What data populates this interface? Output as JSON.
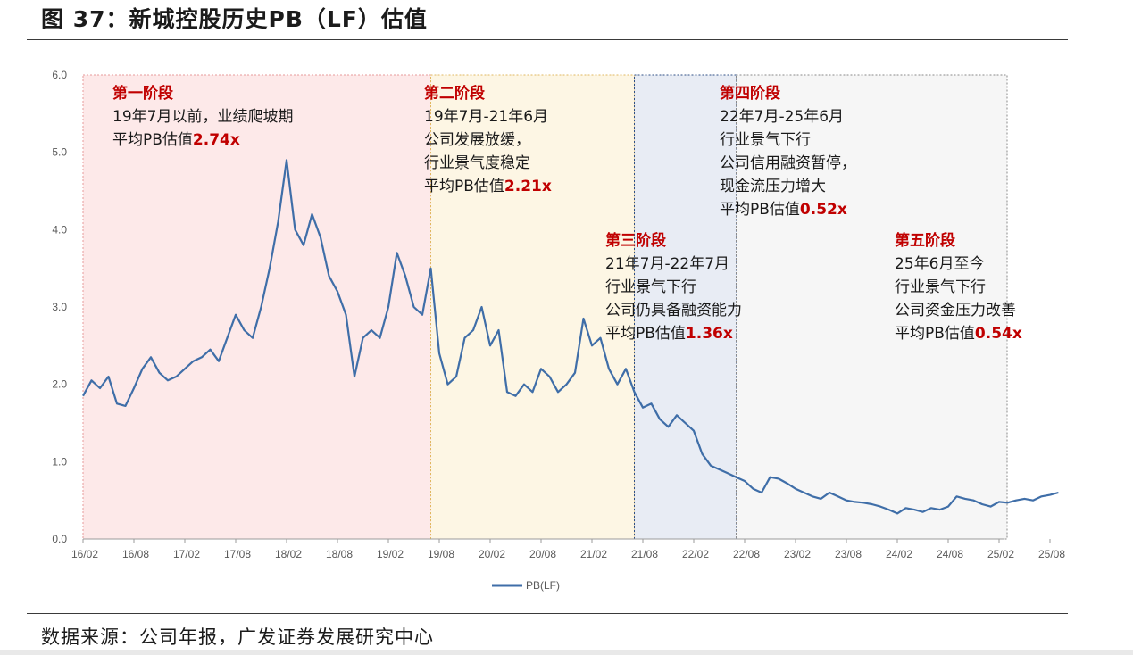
{
  "header": {
    "title": "图 37：新城控股历史PB（LF）估值"
  },
  "footer": {
    "source": "数据来源：公司年报，广发证券发展研究中心"
  },
  "colors": {
    "line": "#3f6ea8",
    "stage_fill": [
      "#fde9e9",
      "#fdf6e4",
      "#e8ecf4",
      "#f6f6f6",
      "#fde9e9"
    ],
    "stage_border": [
      "#e79b9b",
      "#e0b85f",
      "#2f4f86",
      "#8a8a8a",
      "#e79b9b"
    ],
    "header_red": "#c00000"
  },
  "chart_data": {
    "type": "line",
    "title": "",
    "xlabel": "",
    "ylabel": "",
    "ylim": [
      0,
      6
    ],
    "yticks": [
      "0.0",
      "1.0",
      "2.0",
      "3.0",
      "4.0",
      "5.0",
      "6.0"
    ],
    "xticks": [
      "16/02",
      "16/08",
      "17/02",
      "17/08",
      "18/02",
      "18/08",
      "19/02",
      "19/08",
      "20/02",
      "20/08",
      "21/02",
      "21/08",
      "22/02",
      "22/08",
      "23/02",
      "23/08",
      "24/02",
      "24/08",
      "25/02",
      "25/08"
    ],
    "legend": {
      "position": "bottom",
      "label": "PB(LF)"
    },
    "series": [
      {
        "name": "PB(LF)",
        "points": [
          [
            "2016-02",
            1.85
          ],
          [
            "2016-03",
            2.05
          ],
          [
            "2016-04",
            1.95
          ],
          [
            "2016-05",
            2.1
          ],
          [
            "2016-06",
            1.75
          ],
          [
            "2016-07",
            1.72
          ],
          [
            "2016-08",
            1.95
          ],
          [
            "2016-09",
            2.2
          ],
          [
            "2016-10",
            2.35
          ],
          [
            "2016-11",
            2.15
          ],
          [
            "2016-12",
            2.05
          ],
          [
            "2017-01",
            2.1
          ],
          [
            "2017-02",
            2.2
          ],
          [
            "2017-03",
            2.3
          ],
          [
            "2017-04",
            2.35
          ],
          [
            "2017-05",
            2.45
          ],
          [
            "2017-06",
            2.3
          ],
          [
            "2017-07",
            2.6
          ],
          [
            "2017-08",
            2.9
          ],
          [
            "2017-09",
            2.7
          ],
          [
            "2017-10",
            2.6
          ],
          [
            "2017-11",
            3.0
          ],
          [
            "2017-12",
            3.5
          ],
          [
            "2018-01",
            4.1
          ],
          [
            "2018-02",
            4.9
          ],
          [
            "2018-03",
            4.0
          ],
          [
            "2018-04",
            3.8
          ],
          [
            "2018-05",
            4.2
          ],
          [
            "2018-06",
            3.9
          ],
          [
            "2018-07",
            3.4
          ],
          [
            "2018-08",
            3.2
          ],
          [
            "2018-09",
            2.9
          ],
          [
            "2018-10",
            2.1
          ],
          [
            "2018-11",
            2.6
          ],
          [
            "2018-12",
            2.7
          ],
          [
            "2019-01",
            2.6
          ],
          [
            "2019-02",
            3.0
          ],
          [
            "2019-03",
            3.7
          ],
          [
            "2019-04",
            3.4
          ],
          [
            "2019-05",
            3.0
          ],
          [
            "2019-06",
            2.9
          ],
          [
            "2019-07",
            3.5
          ],
          [
            "2019-08",
            2.4
          ],
          [
            "2019-09",
            2.0
          ],
          [
            "2019-10",
            2.1
          ],
          [
            "2019-11",
            2.6
          ],
          [
            "2019-12",
            2.7
          ],
          [
            "2020-01",
            3.0
          ],
          [
            "2020-02",
            2.5
          ],
          [
            "2020-03",
            2.7
          ],
          [
            "2020-04",
            1.9
          ],
          [
            "2020-05",
            1.85
          ],
          [
            "2020-06",
            2.0
          ],
          [
            "2020-07",
            1.9
          ],
          [
            "2020-08",
            2.2
          ],
          [
            "2020-09",
            2.1
          ],
          [
            "2020-10",
            1.9
          ],
          [
            "2020-11",
            2.0
          ],
          [
            "2020-12",
            2.15
          ],
          [
            "2021-01",
            2.85
          ],
          [
            "2021-02",
            2.5
          ],
          [
            "2021-03",
            2.6
          ],
          [
            "2021-04",
            2.2
          ],
          [
            "2021-05",
            2.0
          ],
          [
            "2021-06",
            2.2
          ],
          [
            "2021-07",
            1.9
          ],
          [
            "2021-08",
            1.7
          ],
          [
            "2021-09",
            1.75
          ],
          [
            "2021-10",
            1.55
          ],
          [
            "2021-11",
            1.45
          ],
          [
            "2021-12",
            1.6
          ],
          [
            "2022-01",
            1.5
          ],
          [
            "2022-02",
            1.4
          ],
          [
            "2022-03",
            1.1
          ],
          [
            "2022-04",
            0.95
          ],
          [
            "2022-05",
            0.9
          ],
          [
            "2022-06",
            0.85
          ],
          [
            "2022-07",
            0.8
          ],
          [
            "2022-08",
            0.75
          ],
          [
            "2022-09",
            0.65
          ],
          [
            "2022-10",
            0.6
          ],
          [
            "2022-11",
            0.8
          ],
          [
            "2022-12",
            0.78
          ],
          [
            "2023-01",
            0.72
          ],
          [
            "2023-02",
            0.65
          ],
          [
            "2023-03",
            0.6
          ],
          [
            "2023-04",
            0.55
          ],
          [
            "2023-05",
            0.52
          ],
          [
            "2023-06",
            0.6
          ],
          [
            "2023-07",
            0.55
          ],
          [
            "2023-08",
            0.5
          ],
          [
            "2023-09",
            0.48
          ],
          [
            "2023-10",
            0.47
          ],
          [
            "2023-11",
            0.45
          ],
          [
            "2023-12",
            0.42
          ],
          [
            "2024-01",
            0.38
          ],
          [
            "2024-02",
            0.33
          ],
          [
            "2024-03",
            0.4
          ],
          [
            "2024-04",
            0.38
          ],
          [
            "2024-05",
            0.35
          ],
          [
            "2024-06",
            0.4
          ],
          [
            "2024-07",
            0.38
          ],
          [
            "2024-08",
            0.42
          ],
          [
            "2024-09",
            0.55
          ],
          [
            "2024-10",
            0.52
          ],
          [
            "2024-11",
            0.5
          ],
          [
            "2024-12",
            0.45
          ],
          [
            "2025-01",
            0.42
          ],
          [
            "2025-02",
            0.48
          ],
          [
            "2025-03",
            0.47
          ],
          [
            "2025-04",
            0.5
          ],
          [
            "2025-05",
            0.52
          ],
          [
            "2025-06",
            0.5
          ],
          [
            "2025-07",
            0.55
          ],
          [
            "2025-08",
            0.57
          ],
          [
            "2025-09",
            0.6
          ]
        ]
      }
    ],
    "stages": [
      {
        "start": "2016-02",
        "end": "2019-07",
        "title": "第一阶段",
        "lines": [
          "19年7月以前，业绩爬坡期"
        ],
        "avg_prefix": "平均PB估值",
        "avg_value": "2.74x"
      },
      {
        "start": "2019-07",
        "end": "2021-07",
        "title": "第二阶段",
        "lines": [
          "19年7月-21年6月",
          "公司发展放缓，",
          "行业景气度稳定"
        ],
        "avg_prefix": "平均PB估值",
        "avg_value": "2.21x"
      },
      {
        "start": "2021-07",
        "end": "2022-07",
        "title": "第三阶段",
        "lines": [
          "21年7月-22年7月",
          "行业景气下行",
          "公司仍具备融资能力"
        ],
        "avg_prefix": "平均PB估值",
        "avg_value": "1.36x"
      },
      {
        "start": "2022-07",
        "end": "2025-06",
        "title": "第四阶段",
        "lines": [
          "22年7月-25年6月",
          "行业景气下行",
          "公司信用融资暂停，",
          "现金流压力增大"
        ],
        "avg_prefix": "平均PB估值",
        "avg_value": "0.52x"
      },
      {
        "start": "2025-06",
        "end": "2025-09",
        "title": "第五阶段",
        "lines": [
          "25年6月至今",
          "行业景气下行",
          "公司资金压力改善"
        ],
        "avg_prefix": "平均PB估值",
        "avg_value": "0.54x"
      }
    ]
  }
}
